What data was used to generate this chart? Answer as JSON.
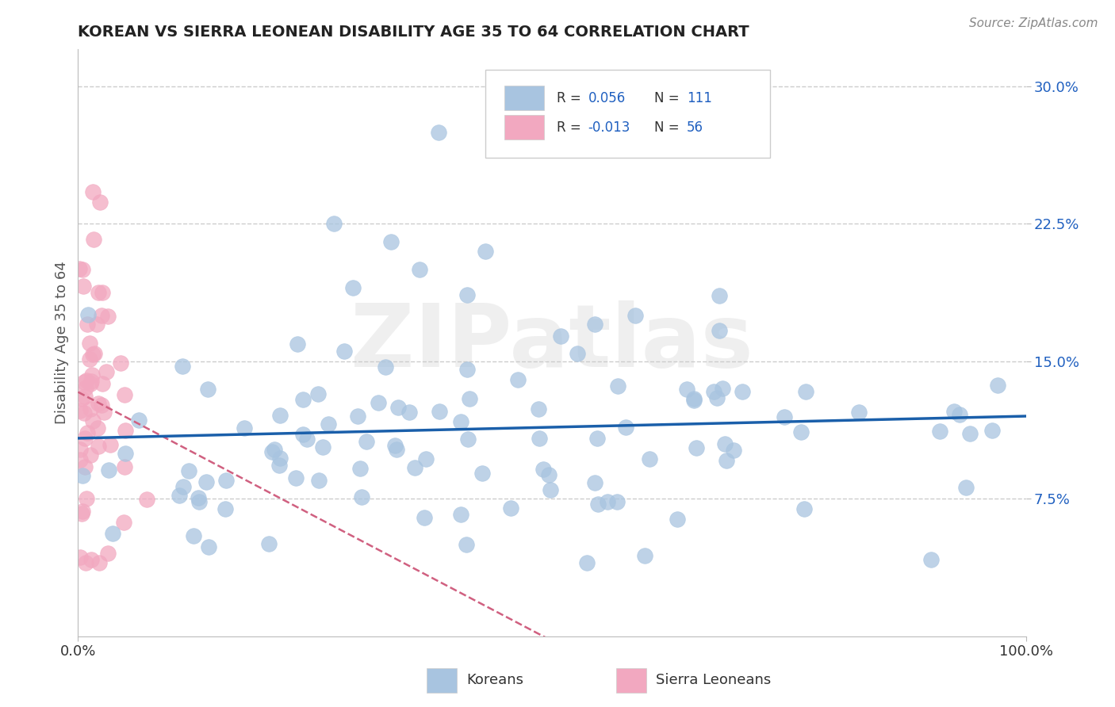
{
  "title": "KOREAN VS SIERRA LEONEAN DISABILITY AGE 35 TO 64 CORRELATION CHART",
  "source_text": "Source: ZipAtlas.com",
  "ylabel": "Disability Age 35 to 64",
  "xlim": [
    0.0,
    1.0
  ],
  "ylim": [
    0.0,
    0.32
  ],
  "xtick_positions": [
    0.0,
    1.0
  ],
  "xtick_labels": [
    "0.0%",
    "100.0%"
  ],
  "ytick_values": [
    0.075,
    0.15,
    0.225,
    0.3
  ],
  "ytick_labels": [
    "7.5%",
    "15.0%",
    "22.5%",
    "30.0%"
  ],
  "korean_R": 0.056,
  "korean_N": 111,
  "sierraleonean_R": -0.013,
  "sierraleonean_N": 56,
  "korean_color": "#a8c4e0",
  "korean_line_color": "#1a5faa",
  "sierraleonean_color": "#f2a8c0",
  "sierraleonean_line_color": "#d06080",
  "watermark": "ZIPatlas",
  "background_color": "#ffffff",
  "grid_color": "#cccccc",
  "title_color": "#222222",
  "axis_label_color": "#555555",
  "ytick_color": "#2060c0",
  "xtick_color": "#333333",
  "legend_text_color": "#333333",
  "legend_value_color": "#2060c0",
  "source_color": "#888888"
}
